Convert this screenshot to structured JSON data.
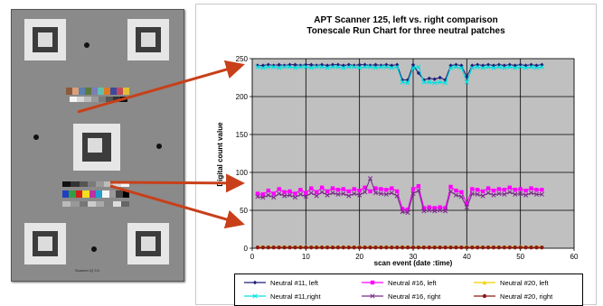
{
  "target": {
    "caption": "Scanner IQ 3.0"
  },
  "chart_data": {
    "type": "line",
    "title": "APT Scanner 125, left vs. right comparison",
    "subtitle": "Tonescale Run Chart for three neutral patches",
    "xlabel": "scan event (date :time)",
    "ylabel": "Digital count value",
    "xlim": [
      0,
      60
    ],
    "ylim": [
      0,
      250
    ],
    "xticks": [
      0,
      10,
      20,
      30,
      40,
      50,
      60
    ],
    "yticks": [
      0,
      50,
      100,
      150,
      200,
      250
    ],
    "grid": true,
    "plot_background": "#c0c0c0",
    "legend_position": "bottom",
    "x": [
      1,
      2,
      3,
      4,
      5,
      6,
      7,
      8,
      9,
      10,
      11,
      12,
      13,
      14,
      15,
      16,
      17,
      18,
      19,
      20,
      21,
      22,
      23,
      24,
      25,
      26,
      27,
      28,
      29,
      30,
      31,
      32,
      33,
      34,
      35,
      36,
      37,
      38,
      39,
      40,
      41,
      42,
      43,
      44,
      45,
      46,
      47,
      48,
      49,
      50,
      51,
      52,
      53,
      54
    ],
    "series": [
      {
        "name": "Neutral #11, left",
        "color": "#1f1f7a",
        "marker": "diamond",
        "values": [
          241,
          241,
          242,
          241,
          242,
          241,
          242,
          242,
          241,
          242,
          242,
          241,
          242,
          241,
          242,
          242,
          241,
          242,
          241,
          242,
          242,
          241,
          242,
          241,
          242,
          241,
          242,
          222,
          222,
          242,
          231,
          222,
          224,
          223,
          225,
          222,
          241,
          242,
          241,
          226,
          241,
          242,
          241,
          242,
          241,
          242,
          241,
          242,
          241,
          242,
          241,
          242,
          241,
          242
        ]
      },
      {
        "name": "Neutral #11,right",
        "color": "#00e0e0",
        "marker": "x",
        "values": [
          239,
          238,
          239,
          239,
          238,
          239,
          239,
          238,
          239,
          239,
          238,
          239,
          239,
          238,
          239,
          239,
          238,
          239,
          239,
          238,
          239,
          239,
          238,
          239,
          239,
          238,
          239,
          219,
          218,
          238,
          239,
          219,
          219,
          218,
          219,
          218,
          238,
          239,
          238,
          219,
          238,
          239,
          238,
          239,
          238,
          239,
          238,
          239,
          238,
          239,
          238,
          239,
          238,
          239
        ]
      },
      {
        "name": "Neutral #16, left",
        "color": "#ff00ff",
        "marker": "square",
        "values": [
          72,
          71,
          76,
          72,
          78,
          74,
          75,
          72,
          77,
          73,
          79,
          74,
          80,
          75,
          79,
          77,
          78,
          75,
          78,
          76,
          80,
          75,
          79,
          78,
          77,
          79,
          75,
          52,
          51,
          78,
          82,
          53,
          54,
          53,
          54,
          53,
          81,
          76,
          74,
          59,
          78,
          77,
          75,
          79,
          76,
          78,
          77,
          80,
          77,
          78,
          76,
          79,
          77,
          77
        ]
      },
      {
        "name": "Neutral #16, right",
        "color": "#7a2a8a",
        "marker": "x",
        "values": [
          68,
          67,
          70,
          67,
          72,
          69,
          70,
          67,
          71,
          68,
          73,
          69,
          74,
          70,
          73,
          71,
          72,
          69,
          72,
          70,
          74,
          92,
          73,
          72,
          71,
          73,
          69,
          48,
          47,
          72,
          76,
          49,
          50,
          49,
          50,
          49,
          75,
          70,
          68,
          54,
          72,
          71,
          69,
          73,
          70,
          72,
          71,
          74,
          71,
          72,
          70,
          73,
          71,
          71
        ]
      },
      {
        "name": "Neutral #20, left",
        "color": "#f0d000",
        "marker": "triangle",
        "values": [
          2,
          2,
          2,
          2,
          2,
          2,
          2,
          2,
          2,
          2,
          2,
          2,
          2,
          2,
          2,
          2,
          2,
          2,
          2,
          2,
          2,
          2,
          2,
          2,
          2,
          2,
          2,
          2,
          2,
          2,
          2,
          2,
          2,
          2,
          2,
          2,
          2,
          2,
          2,
          2,
          2,
          2,
          2,
          2,
          2,
          2,
          2,
          2,
          2,
          2,
          2,
          2,
          2,
          2
        ]
      },
      {
        "name": "Neutral #20, right",
        "color": "#8b1a1a",
        "marker": "circle",
        "values": [
          1,
          1,
          1,
          1,
          1,
          1,
          1,
          1,
          1,
          1,
          1,
          1,
          1,
          1,
          1,
          1,
          1,
          1,
          1,
          1,
          1,
          1,
          1,
          1,
          1,
          1,
          1,
          1,
          1,
          1,
          1,
          1,
          1,
          1,
          1,
          1,
          1,
          1,
          1,
          1,
          1,
          1,
          1,
          1,
          1,
          1,
          1,
          1,
          1,
          1,
          1,
          1,
          1,
          1
        ]
      }
    ]
  },
  "colors": {
    "arrow": "#c8401a",
    "grid": "#000000"
  }
}
